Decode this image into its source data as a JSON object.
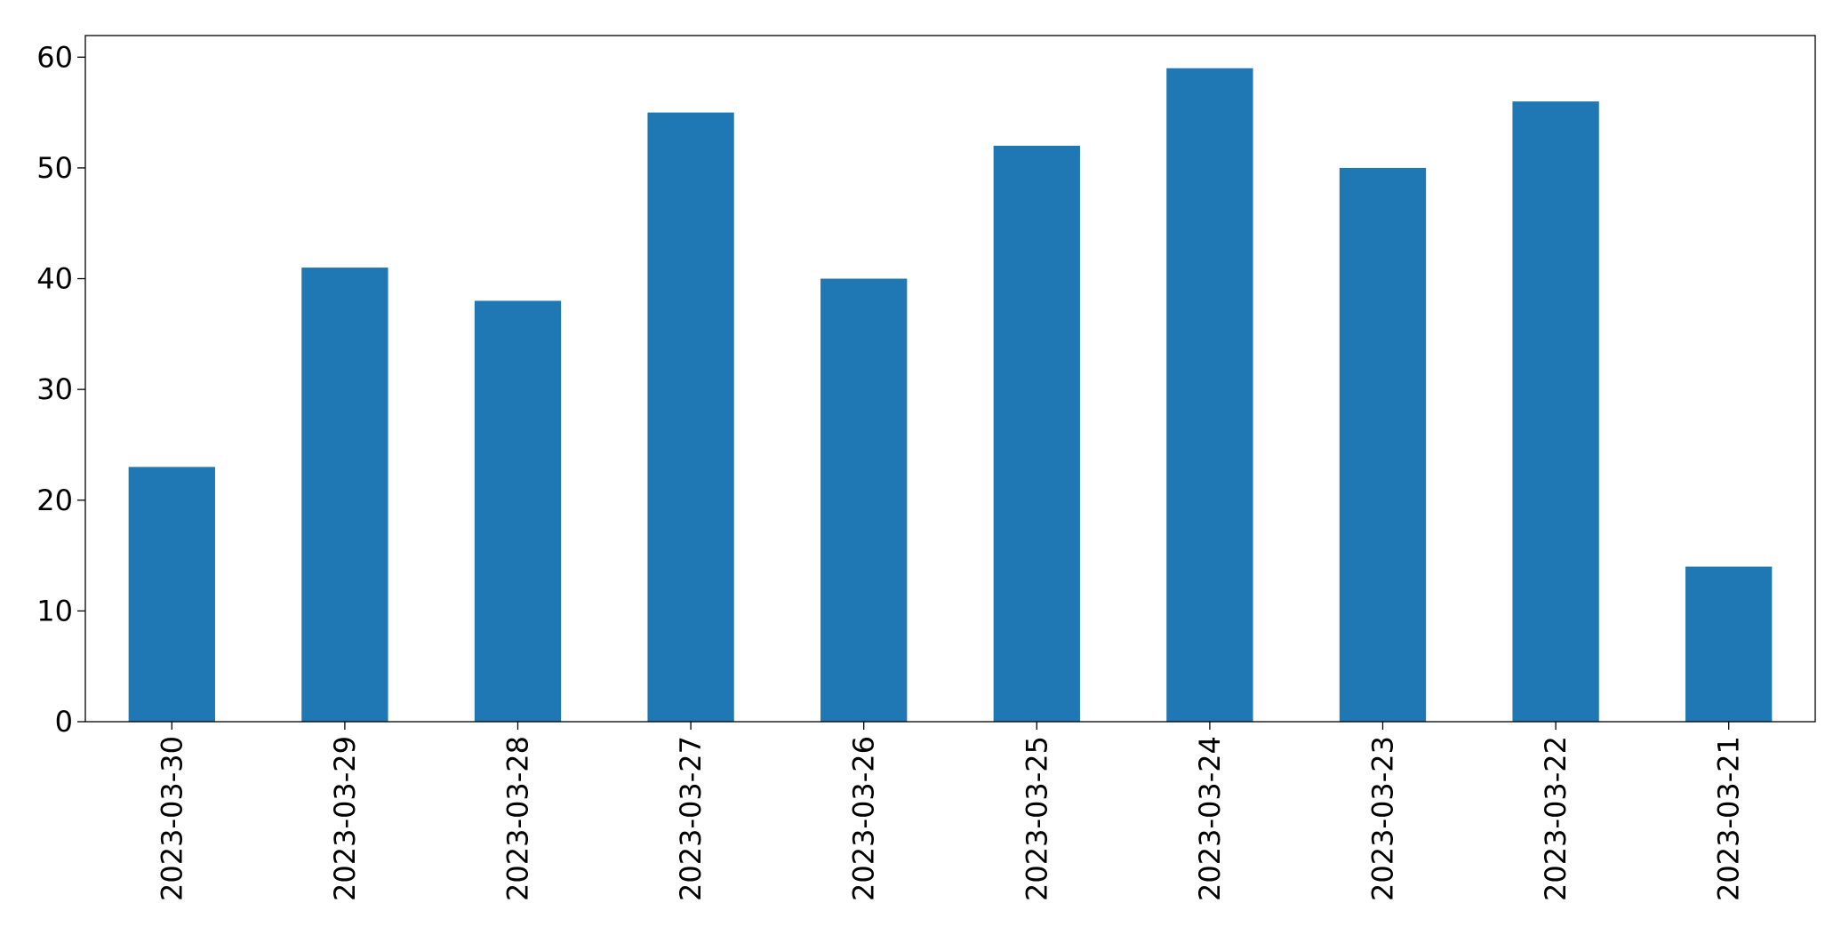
{
  "chart_data": {
    "type": "bar",
    "categories": [
      "2023-03-30",
      "2023-03-29",
      "2023-03-28",
      "2023-03-27",
      "2023-03-26",
      "2023-03-25",
      "2023-03-24",
      "2023-03-23",
      "2023-03-22",
      "2023-03-21"
    ],
    "values": [
      23,
      41,
      38,
      55,
      40,
      52,
      59,
      50,
      56,
      14
    ],
    "color": "#1f77b4",
    "ylim": [
      0,
      61.95
    ],
    "yticks": [
      0,
      10,
      20,
      30,
      40,
      50,
      60
    ],
    "grid": false
  }
}
